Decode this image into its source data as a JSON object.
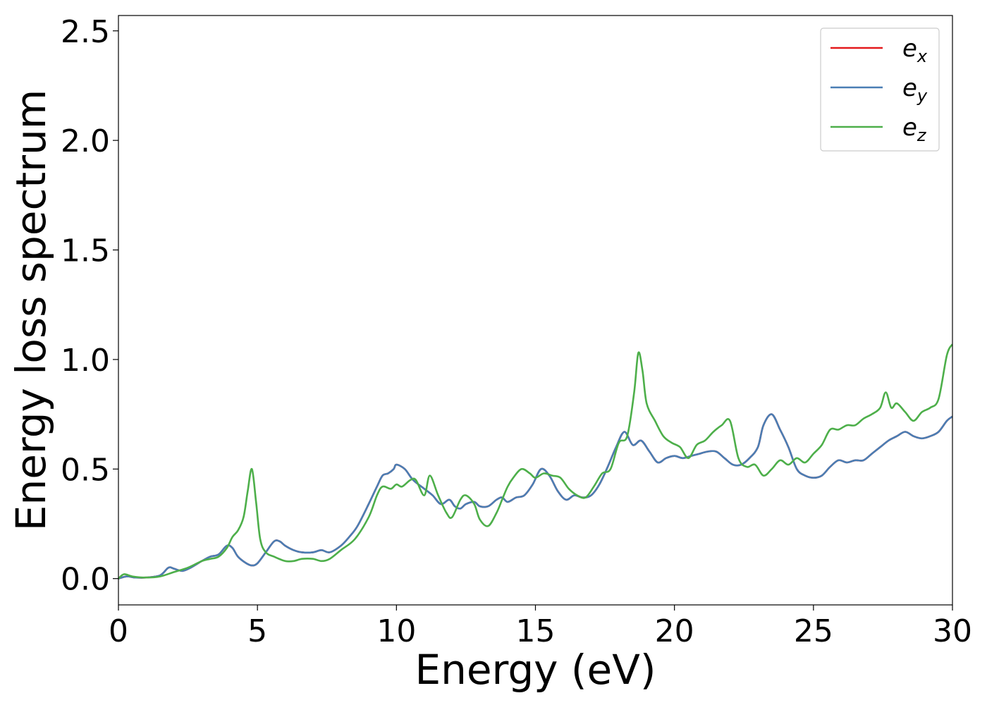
{
  "chart_data": {
    "type": "line",
    "xlabel": "Energy (eV)",
    "ylabel": "Energy loss spectrum",
    "xlim": [
      0,
      30
    ],
    "ylim": [
      -0.12,
      2.57
    ],
    "xticks": [
      0,
      5,
      10,
      15,
      20,
      25,
      30
    ],
    "xtick_labels": [
      "0",
      "5",
      "10",
      "15",
      "20",
      "25",
      "30"
    ],
    "yticks": [
      0.0,
      0.5,
      1.0,
      1.5,
      2.0,
      2.5
    ],
    "ytick_labels": [
      "0.0",
      "0.5",
      "1.0",
      "1.5",
      "2.0",
      "2.5"
    ],
    "grid": false,
    "legend_position": "top-right",
    "series": [
      {
        "name": "e_x",
        "legend_main": "e",
        "legend_sub": "x",
        "color": "#e41a1c",
        "x": [
          0,
          0.3,
          0.6,
          1.0,
          1.5,
          1.8,
          2.0,
          2.3,
          2.6,
          3.0,
          3.3,
          3.6,
          3.9,
          4.1,
          4.3,
          4.6,
          4.8,
          5.0,
          5.3,
          5.6,
          5.8,
          6.0,
          6.3,
          6.6,
          7.0,
          7.3,
          7.6,
          8.0,
          8.3,
          8.6,
          9.0,
          9.3,
          9.5,
          9.7,
          9.9,
          10.0,
          10.3,
          10.6,
          11.0,
          11.3,
          11.6,
          11.9,
          12.1,
          12.3,
          12.5,
          12.8,
          13.0,
          13.3,
          13.6,
          13.8,
          14.0,
          14.3,
          14.6,
          14.9,
          15.2,
          15.5,
          15.8,
          16.1,
          16.4,
          16.7,
          17.0,
          17.3,
          17.6,
          17.9,
          18.2,
          18.5,
          18.8,
          19.1,
          19.4,
          19.7,
          20.0,
          20.3,
          20.6,
          20.9,
          21.2,
          21.5,
          21.8,
          22.1,
          22.4,
          22.7,
          23.0,
          23.2,
          23.5,
          23.8,
          24.1,
          24.4,
          24.7,
          25.0,
          25.3,
          25.6,
          25.9,
          26.2,
          26.5,
          26.8,
          27.1,
          27.4,
          27.7,
          28.0,
          28.3,
          28.6,
          28.9,
          29.2,
          29.5,
          29.8,
          30.0
        ],
        "y": [
          0.0,
          0.01,
          0.005,
          0.005,
          0.015,
          0.05,
          0.045,
          0.035,
          0.05,
          0.08,
          0.1,
          0.11,
          0.15,
          0.14,
          0.1,
          0.07,
          0.06,
          0.07,
          0.12,
          0.17,
          0.17,
          0.15,
          0.13,
          0.12,
          0.12,
          0.13,
          0.12,
          0.15,
          0.19,
          0.24,
          0.34,
          0.42,
          0.47,
          0.48,
          0.5,
          0.52,
          0.5,
          0.45,
          0.41,
          0.38,
          0.34,
          0.36,
          0.33,
          0.32,
          0.34,
          0.35,
          0.33,
          0.33,
          0.36,
          0.37,
          0.35,
          0.37,
          0.38,
          0.43,
          0.5,
          0.47,
          0.4,
          0.36,
          0.38,
          0.37,
          0.38,
          0.43,
          0.51,
          0.6,
          0.67,
          0.61,
          0.63,
          0.58,
          0.53,
          0.55,
          0.56,
          0.55,
          0.56,
          0.57,
          0.58,
          0.58,
          0.55,
          0.52,
          0.52,
          0.55,
          0.6,
          0.7,
          0.75,
          0.68,
          0.6,
          0.5,
          0.47,
          0.46,
          0.47,
          0.51,
          0.54,
          0.53,
          0.54,
          0.54,
          0.57,
          0.6,
          0.63,
          0.65,
          0.67,
          0.65,
          0.64,
          0.65,
          0.67,
          0.72,
          0.74
        ]
      },
      {
        "name": "e_y",
        "legend_main": "e",
        "legend_sub": "y",
        "color": "#4a7eb4",
        "x": [
          0,
          0.3,
          0.6,
          1.0,
          1.5,
          1.8,
          2.0,
          2.3,
          2.6,
          3.0,
          3.3,
          3.6,
          3.9,
          4.1,
          4.3,
          4.6,
          4.8,
          5.0,
          5.3,
          5.6,
          5.8,
          6.0,
          6.3,
          6.6,
          7.0,
          7.3,
          7.6,
          8.0,
          8.3,
          8.6,
          9.0,
          9.3,
          9.5,
          9.7,
          9.9,
          10.0,
          10.3,
          10.6,
          11.0,
          11.3,
          11.6,
          11.9,
          12.1,
          12.3,
          12.5,
          12.8,
          13.0,
          13.3,
          13.6,
          13.8,
          14.0,
          14.3,
          14.6,
          14.9,
          15.2,
          15.5,
          15.8,
          16.1,
          16.4,
          16.7,
          17.0,
          17.3,
          17.6,
          17.9,
          18.2,
          18.5,
          18.8,
          19.1,
          19.4,
          19.7,
          20.0,
          20.3,
          20.6,
          20.9,
          21.2,
          21.5,
          21.8,
          22.1,
          22.4,
          22.7,
          23.0,
          23.2,
          23.5,
          23.8,
          24.1,
          24.4,
          24.7,
          25.0,
          25.3,
          25.6,
          25.9,
          26.2,
          26.5,
          26.8,
          27.1,
          27.4,
          27.7,
          28.0,
          28.3,
          28.6,
          28.9,
          29.2,
          29.5,
          29.8,
          30.0
        ],
        "y": [
          0.0,
          0.01,
          0.005,
          0.005,
          0.015,
          0.05,
          0.045,
          0.035,
          0.05,
          0.08,
          0.1,
          0.11,
          0.15,
          0.14,
          0.1,
          0.07,
          0.06,
          0.07,
          0.12,
          0.17,
          0.17,
          0.15,
          0.13,
          0.12,
          0.12,
          0.13,
          0.12,
          0.15,
          0.19,
          0.24,
          0.34,
          0.42,
          0.47,
          0.48,
          0.5,
          0.52,
          0.5,
          0.45,
          0.41,
          0.38,
          0.34,
          0.36,
          0.33,
          0.32,
          0.34,
          0.35,
          0.33,
          0.33,
          0.36,
          0.37,
          0.35,
          0.37,
          0.38,
          0.43,
          0.5,
          0.47,
          0.4,
          0.36,
          0.38,
          0.37,
          0.38,
          0.43,
          0.51,
          0.6,
          0.67,
          0.61,
          0.63,
          0.58,
          0.53,
          0.55,
          0.56,
          0.55,
          0.56,
          0.57,
          0.58,
          0.58,
          0.55,
          0.52,
          0.52,
          0.55,
          0.6,
          0.7,
          0.75,
          0.68,
          0.6,
          0.5,
          0.47,
          0.46,
          0.47,
          0.51,
          0.54,
          0.53,
          0.54,
          0.54,
          0.57,
          0.6,
          0.63,
          0.65,
          0.67,
          0.65,
          0.64,
          0.65,
          0.67,
          0.72,
          0.74
        ]
      },
      {
        "name": "e_z",
        "legend_main": "e",
        "legend_sub": "z",
        "color": "#4daf4a",
        "x": [
          0,
          0.2,
          0.5,
          1.0,
          1.5,
          2.0,
          2.5,
          3.0,
          3.3,
          3.6,
          3.9,
          4.1,
          4.3,
          4.5,
          4.65,
          4.8,
          4.95,
          5.1,
          5.3,
          5.6,
          6.0,
          6.3,
          6.6,
          7.0,
          7.3,
          7.6,
          8.0,
          8.5,
          9.0,
          9.3,
          9.5,
          9.8,
          10.0,
          10.2,
          10.5,
          10.7,
          11.0,
          11.2,
          11.5,
          11.8,
          12.0,
          12.3,
          12.5,
          12.8,
          13.0,
          13.3,
          13.6,
          13.8,
          14.0,
          14.2,
          14.5,
          14.8,
          15.0,
          15.3,
          15.6,
          15.9,
          16.2,
          16.5,
          16.8,
          17.1,
          17.4,
          17.7,
          18.0,
          18.3,
          18.55,
          18.7,
          18.85,
          19.0,
          19.3,
          19.6,
          19.9,
          20.2,
          20.5,
          20.8,
          21.1,
          21.4,
          21.7,
          22.0,
          22.3,
          22.6,
          22.9,
          23.2,
          23.5,
          23.8,
          24.1,
          24.4,
          24.7,
          25.0,
          25.3,
          25.6,
          25.9,
          26.2,
          26.5,
          26.8,
          27.1,
          27.4,
          27.6,
          27.8,
          28.0,
          28.3,
          28.6,
          28.9,
          29.2,
          29.5,
          29.8,
          30.0
        ],
        "y": [
          0.0,
          0.02,
          0.01,
          0.005,
          0.01,
          0.03,
          0.05,
          0.08,
          0.09,
          0.1,
          0.14,
          0.19,
          0.22,
          0.28,
          0.4,
          0.5,
          0.35,
          0.18,
          0.12,
          0.1,
          0.08,
          0.08,
          0.09,
          0.09,
          0.08,
          0.09,
          0.13,
          0.18,
          0.28,
          0.38,
          0.42,
          0.41,
          0.43,
          0.42,
          0.45,
          0.45,
          0.38,
          0.47,
          0.38,
          0.3,
          0.28,
          0.36,
          0.38,
          0.34,
          0.27,
          0.24,
          0.3,
          0.36,
          0.42,
          0.46,
          0.5,
          0.48,
          0.46,
          0.48,
          0.47,
          0.46,
          0.41,
          0.38,
          0.37,
          0.42,
          0.48,
          0.5,
          0.62,
          0.65,
          0.85,
          1.03,
          0.95,
          0.8,
          0.72,
          0.65,
          0.62,
          0.6,
          0.55,
          0.61,
          0.63,
          0.67,
          0.7,
          0.72,
          0.55,
          0.51,
          0.52,
          0.47,
          0.5,
          0.54,
          0.52,
          0.55,
          0.53,
          0.57,
          0.61,
          0.68,
          0.68,
          0.7,
          0.7,
          0.73,
          0.75,
          0.78,
          0.85,
          0.78,
          0.8,
          0.76,
          0.72,
          0.76,
          0.78,
          0.82,
          1.02,
          1.07
        ]
      }
    ]
  }
}
